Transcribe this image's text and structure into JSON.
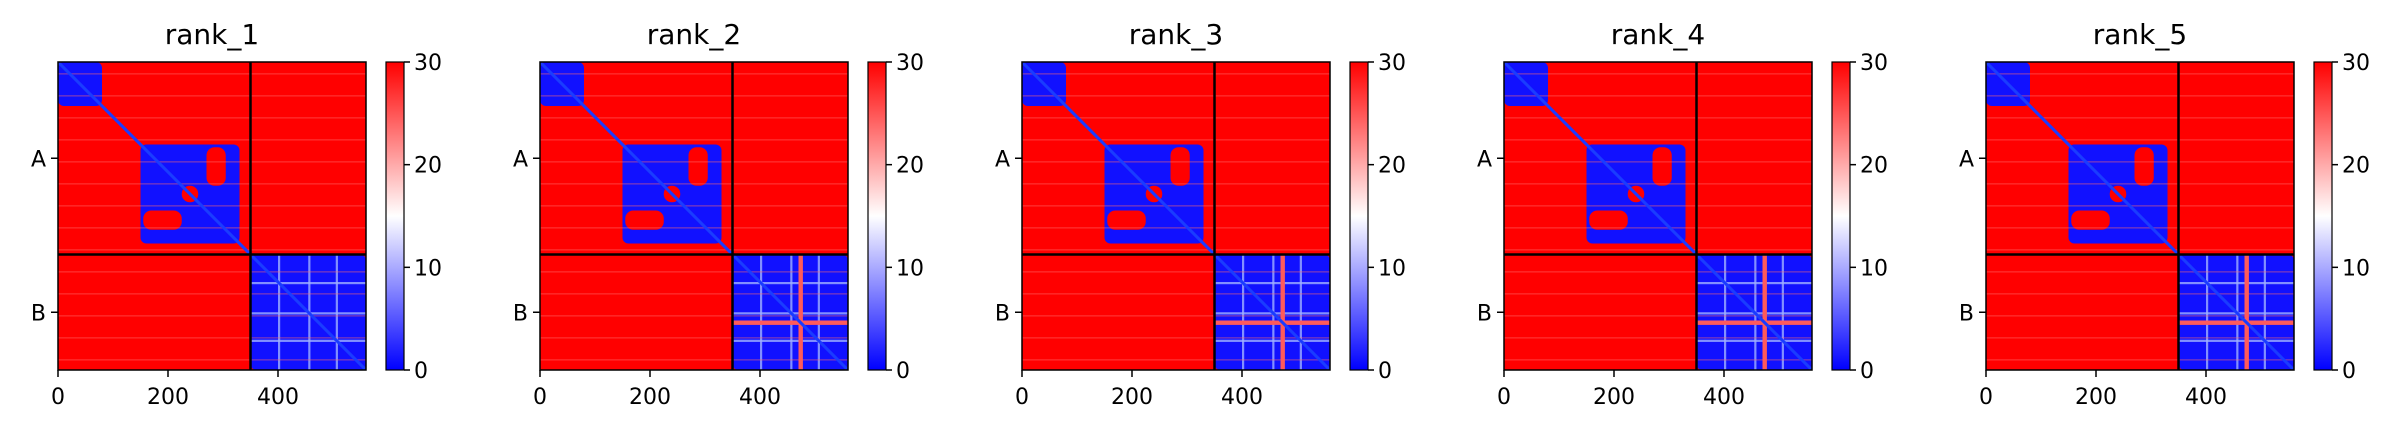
{
  "chart_data": [
    {
      "type": "heatmap",
      "title": "rank_1",
      "xticks": [
        0,
        200,
        400
      ],
      "y_chain_labels": [
        "A",
        "B"
      ],
      "chain_lengths": [
        350,
        210
      ],
      "chain_boundary": 350,
      "total_residues": 560,
      "colorbar": {
        "min": 0,
        "max": 30,
        "ticks": [
          0,
          10,
          20,
          30
        ],
        "colormap": "bwr"
      },
      "pae_blocks": {
        "within_domain": 1,
        "cross_domain": 30
      },
      "hotspot_residues": []
    },
    {
      "type": "heatmap",
      "title": "rank_2",
      "xticks": [
        0,
        200,
        400
      ],
      "y_chain_labels": [
        "A",
        "B"
      ],
      "chain_lengths": [
        350,
        210
      ],
      "chain_boundary": 350,
      "total_residues": 560,
      "colorbar": {
        "min": 0,
        "max": 30,
        "ticks": [
          0,
          10,
          20,
          30
        ],
        "colormap": "bwr"
      },
      "pae_blocks": {
        "within_domain": 1,
        "cross_domain": 30
      },
      "hotspot_residues": [
        474
      ]
    },
    {
      "type": "heatmap",
      "title": "rank_3",
      "xticks": [
        0,
        200,
        400
      ],
      "y_chain_labels": [
        "A",
        "B"
      ],
      "chain_lengths": [
        350,
        210
      ],
      "chain_boundary": 350,
      "total_residues": 560,
      "colorbar": {
        "min": 0,
        "max": 30,
        "ticks": [
          0,
          10,
          20,
          30
        ],
        "colormap": "bwr"
      },
      "pae_blocks": {
        "within_domain": 1,
        "cross_domain": 30
      },
      "hotspot_residues": [
        474
      ]
    },
    {
      "type": "heatmap",
      "title": "rank_4",
      "xticks": [
        0,
        200,
        400
      ],
      "y_chain_labels": [
        "A",
        "B"
      ],
      "chain_lengths": [
        350,
        210
      ],
      "chain_boundary": 350,
      "total_residues": 560,
      "colorbar": {
        "min": 0,
        "max": 30,
        "ticks": [
          0,
          10,
          20,
          30
        ],
        "colormap": "bwr"
      },
      "pae_blocks": {
        "within_domain": 1,
        "cross_domain": 30
      },
      "hotspot_residues": [
        474
      ]
    },
    {
      "type": "heatmap",
      "title": "rank_5",
      "xticks": [
        0,
        200,
        400
      ],
      "y_chain_labels": [
        "A",
        "B"
      ],
      "chain_lengths": [
        350,
        210
      ],
      "chain_boundary": 350,
      "total_residues": 560,
      "colorbar": {
        "min": 0,
        "max": 30,
        "ticks": [
          0,
          10,
          20,
          30
        ],
        "colormap": "bwr"
      },
      "pae_blocks": {
        "within_domain": 1,
        "cross_domain": 30
      },
      "hotspot_residues": [
        474
      ]
    }
  ]
}
